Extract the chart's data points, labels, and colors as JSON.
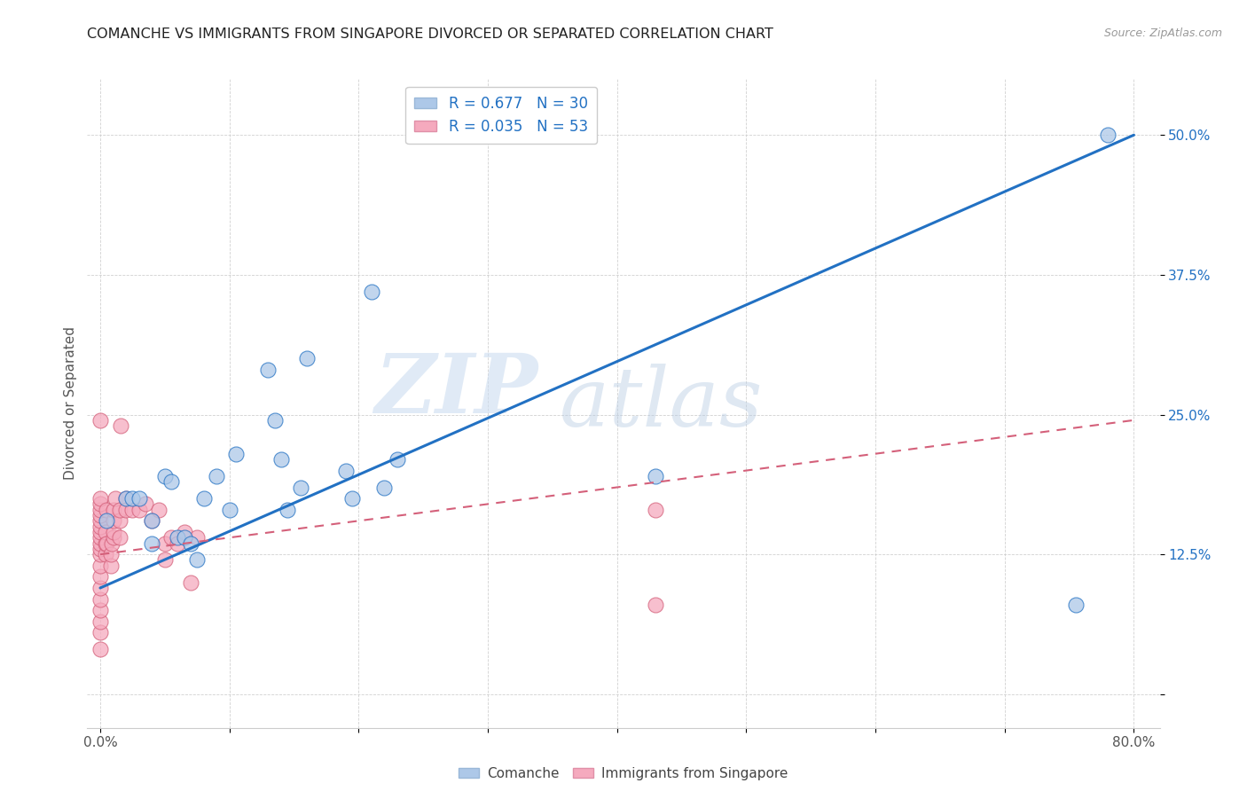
{
  "title": "COMANCHE VS IMMIGRANTS FROM SINGAPORE DIVORCED OR SEPARATED CORRELATION CHART",
  "source": "Source: ZipAtlas.com",
  "ylabel": "Divorced or Separated",
  "xlim": [
    0.0,
    0.82
  ],
  "ylim": [
    -0.03,
    0.55
  ],
  "xticks": [
    0.0,
    0.1,
    0.2,
    0.3,
    0.4,
    0.5,
    0.6,
    0.7,
    0.8
  ],
  "xticklabels": [
    "0.0%",
    "",
    "",
    "",
    "",
    "",
    "",
    "",
    "80.0%"
  ],
  "ytick_positions": [
    0.0,
    0.125,
    0.25,
    0.375,
    0.5
  ],
  "ytick_labels": [
    "",
    "12.5%",
    "25.0%",
    "37.5%",
    "50.0%"
  ],
  "r_comanche": 0.677,
  "n_comanche": 30,
  "r_singapore": 0.035,
  "n_singapore": 53,
  "comanche_color": "#adc8e8",
  "singapore_color": "#f5aabe",
  "blue_line_color": "#2271c3",
  "pink_line_color": "#d4607a",
  "watermark_zip": "ZIP",
  "watermark_atlas": "atlas",
  "blue_line_x0": 0.0,
  "blue_line_y0": 0.095,
  "blue_line_x1": 0.8,
  "blue_line_y1": 0.5,
  "pink_line_x0": 0.0,
  "pink_line_y0": 0.125,
  "pink_line_x1": 0.8,
  "pink_line_y1": 0.245,
  "comanche_x": [
    0.005,
    0.02,
    0.025,
    0.03,
    0.04,
    0.04,
    0.05,
    0.055,
    0.06,
    0.065,
    0.07,
    0.075,
    0.08,
    0.09,
    0.1,
    0.105,
    0.13,
    0.135,
    0.14,
    0.145,
    0.155,
    0.16,
    0.19,
    0.195,
    0.21,
    0.22,
    0.23,
    0.43,
    0.755,
    0.78
  ],
  "comanche_y": [
    0.155,
    0.175,
    0.175,
    0.175,
    0.155,
    0.135,
    0.195,
    0.19,
    0.14,
    0.14,
    0.135,
    0.12,
    0.175,
    0.195,
    0.165,
    0.215,
    0.29,
    0.245,
    0.21,
    0.165,
    0.185,
    0.3,
    0.2,
    0.175,
    0.36,
    0.185,
    0.21,
    0.195,
    0.08,
    0.5
  ],
  "singapore_x": [
    0.0,
    0.0,
    0.0,
    0.0,
    0.0,
    0.0,
    0.0,
    0.0,
    0.0,
    0.0,
    0.0,
    0.0,
    0.0,
    0.0,
    0.0,
    0.0,
    0.0,
    0.0,
    0.0,
    0.0,
    0.004,
    0.004,
    0.004,
    0.005,
    0.005,
    0.008,
    0.008,
    0.009,
    0.01,
    0.01,
    0.01,
    0.01,
    0.012,
    0.015,
    0.015,
    0.015,
    0.016,
    0.02,
    0.02,
    0.025,
    0.03,
    0.035,
    0.04,
    0.045,
    0.05,
    0.05,
    0.055,
    0.06,
    0.065,
    0.07,
    0.075,
    0.43,
    0.43
  ],
  "singapore_y": [
    0.04,
    0.055,
    0.065,
    0.075,
    0.085,
    0.095,
    0.105,
    0.115,
    0.125,
    0.13,
    0.135,
    0.14,
    0.145,
    0.15,
    0.155,
    0.16,
    0.165,
    0.17,
    0.175,
    0.245,
    0.125,
    0.135,
    0.145,
    0.135,
    0.165,
    0.115,
    0.125,
    0.135,
    0.14,
    0.145,
    0.155,
    0.165,
    0.175,
    0.14,
    0.155,
    0.165,
    0.24,
    0.175,
    0.165,
    0.165,
    0.165,
    0.17,
    0.155,
    0.165,
    0.12,
    0.135,
    0.14,
    0.135,
    0.145,
    0.1,
    0.14,
    0.165,
    0.08
  ]
}
